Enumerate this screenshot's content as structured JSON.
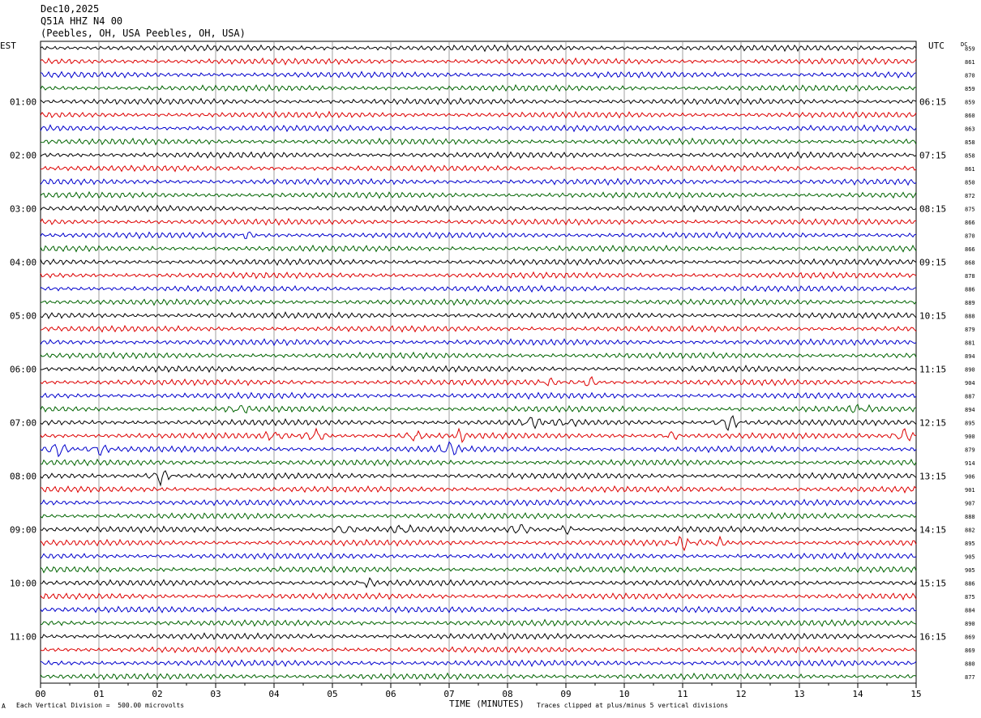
{
  "header": {
    "date": "Dec10,2025",
    "channel": "Q51A HHZ N4 00",
    "location": "(Peebles, OH, USA Peebles, OH, USA)"
  },
  "left_tz": "EST",
  "right_tz": "UTC",
  "dc_label": "DC",
  "footer": {
    "scale": "Each Vertical Division =  500.00 microvolts",
    "clip": "Traces clipped at plus/minus 5 vertical divisions",
    "mark": "A"
  },
  "colors": {
    "black": "#000000",
    "red": "#dd0000",
    "blue": "#0000cc",
    "green": "#006400",
    "grid": "#888888"
  },
  "chart_data": {
    "type": "line",
    "xlabel": "TIME (MINUTES)",
    "xlim": [
      0,
      15
    ],
    "x_ticks": [
      "00",
      "01",
      "02",
      "03",
      "04",
      "05",
      "06",
      "07",
      "08",
      "09",
      "10",
      "11",
      "12",
      "13",
      "14",
      "15"
    ],
    "left_hour_labels": [
      "01:00",
      "02:00",
      "03:00",
      "04:00",
      "05:00",
      "06:00",
      "07:00",
      "08:00",
      "09:00",
      "10:00",
      "11:00"
    ],
    "right_hour_labels": [
      "06:15",
      "07:15",
      "08:15",
      "09:15",
      "10:15",
      "11:15",
      "12:15",
      "13:15",
      "14:15",
      "15:15",
      "16:15"
    ],
    "trace_colors": [
      "black",
      "red",
      "blue",
      "green"
    ],
    "dc_values": [
      "859",
      "861",
      "870",
      "859",
      "859",
      "860",
      "863",
      "858",
      "858",
      "861",
      "850",
      "872",
      "875",
      "866",
      "870",
      "866",
      "868",
      "878",
      "886",
      "889",
      "888",
      "879",
      "881",
      "894",
      "890",
      "904",
      "887",
      "894",
      "895",
      "900",
      "879",
      "914",
      "906",
      "901",
      "907",
      "888",
      "882",
      "895",
      "905",
      "905",
      "886",
      "875",
      "884",
      "890",
      "869",
      "869",
      "880",
      "877"
    ],
    "events": [
      {
        "row": 14,
        "minute": 3.55,
        "amp": 1.0
      },
      {
        "row": 27,
        "minute": 3.4,
        "amp": 1.5
      },
      {
        "row": 27,
        "minute": 14.0,
        "amp": 1.2
      },
      {
        "row": 25,
        "minute": 8.7,
        "amp": 1.2
      },
      {
        "row": 25,
        "minute": 9.4,
        "amp": 1.6
      },
      {
        "row": 28,
        "minute": 8.4,
        "amp": 1.8
      },
      {
        "row": 28,
        "minute": 9.0,
        "amp": 1.2
      },
      {
        "row": 28,
        "minute": 11.8,
        "amp": 2.5
      },
      {
        "row": 29,
        "minute": 4.0,
        "amp": 1.4
      },
      {
        "row": 29,
        "minute": 4.7,
        "amp": 2.0
      },
      {
        "row": 29,
        "minute": 6.4,
        "amp": 1.5
      },
      {
        "row": 29,
        "minute": 7.2,
        "amp": 1.6
      },
      {
        "row": 29,
        "minute": 10.8,
        "amp": 1.2
      },
      {
        "row": 29,
        "minute": 14.8,
        "amp": 2.0
      },
      {
        "row": 30,
        "minute": 0.3,
        "amp": 2.5
      },
      {
        "row": 30,
        "minute": 1.0,
        "amp": 1.6
      },
      {
        "row": 30,
        "minute": 7.0,
        "amp": 2.2
      },
      {
        "row": 32,
        "minute": 2.05,
        "amp": 2.0
      },
      {
        "row": 36,
        "minute": 5.2,
        "amp": 1.5
      },
      {
        "row": 36,
        "minute": 6.2,
        "amp": 1.4
      },
      {
        "row": 36,
        "minute": 8.2,
        "amp": 1.8
      },
      {
        "row": 36,
        "minute": 9.0,
        "amp": 1.2
      },
      {
        "row": 37,
        "minute": 11.0,
        "amp": 2.0
      },
      {
        "row": 37,
        "minute": 11.6,
        "amp": 1.3
      },
      {
        "row": 40,
        "minute": 5.6,
        "amp": 1.0
      }
    ]
  }
}
